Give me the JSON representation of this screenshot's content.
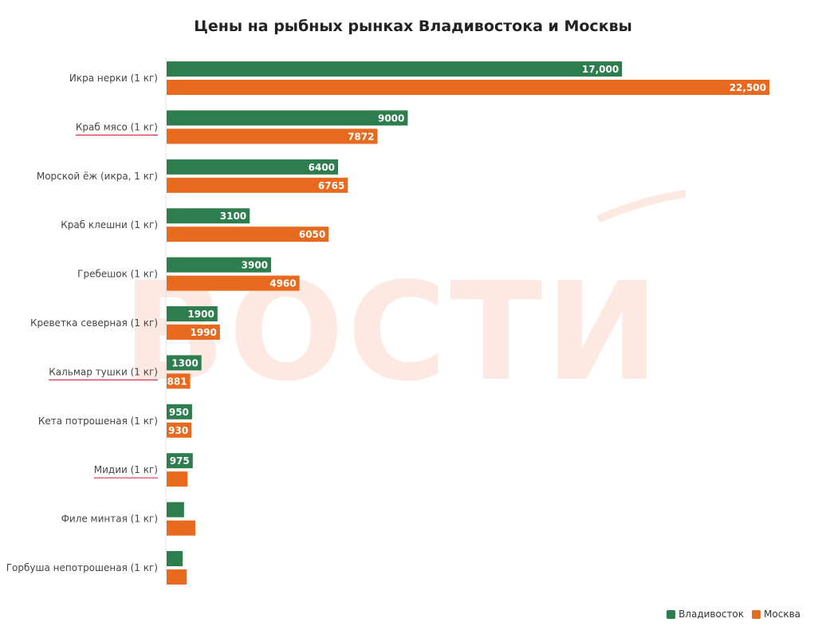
{
  "chart_data": {
    "type": "bar",
    "orientation": "horizontal",
    "title": "Цены на рыбных рынках Владивостока и Москвы",
    "xlabel": "",
    "ylabel": "",
    "xlim": [
      0,
      22500
    ],
    "grid": false,
    "legend_position": "bottom-right",
    "categories": [
      "Икра нерки (1 кг)",
      "Краб мясо (1 кг)",
      "Морской ёж (икра, 1 кг)",
      "Краб клешни (1 кг)",
      "Гребешок (1 кг)",
      "Креветка северная (1 кг)",
      "Кальмар тушки (1 кг)",
      "Кета потрошеная (1 кг)",
      "Мидии (1 кг)",
      "Филе минтая (1 кг)",
      "Горбуша непотрошеная (1 кг)"
    ],
    "underlined_categories": [
      1,
      6,
      8
    ],
    "series": [
      {
        "name": "Владивосток",
        "color": "#2e7d4f",
        "values": [
          17000,
          9000,
          6400,
          3100,
          3900,
          1900,
          1300,
          950,
          975,
          650,
          600
        ],
        "labels": [
          "17,000",
          "9000",
          "6400",
          "3100",
          "3900",
          "1900",
          "1300",
          "950",
          "975",
          "",
          ""
        ]
      },
      {
        "name": "Москва",
        "color": "#e86a1e",
        "values": [
          22500,
          7872,
          6765,
          6050,
          4960,
          1990,
          881,
          930,
          780,
          1070,
          750
        ],
        "labels": [
          "22,500",
          "7872",
          "6765",
          "6050",
          "4960",
          "1990",
          "881",
          "930",
          "",
          "",
          ""
        ]
      }
    ]
  },
  "watermark": {
    "text": "НОВОСТИ VL",
    "color": "#fde9e2"
  },
  "colors": {
    "underline": "#d9304f",
    "axis": "#e0e0e0"
  }
}
